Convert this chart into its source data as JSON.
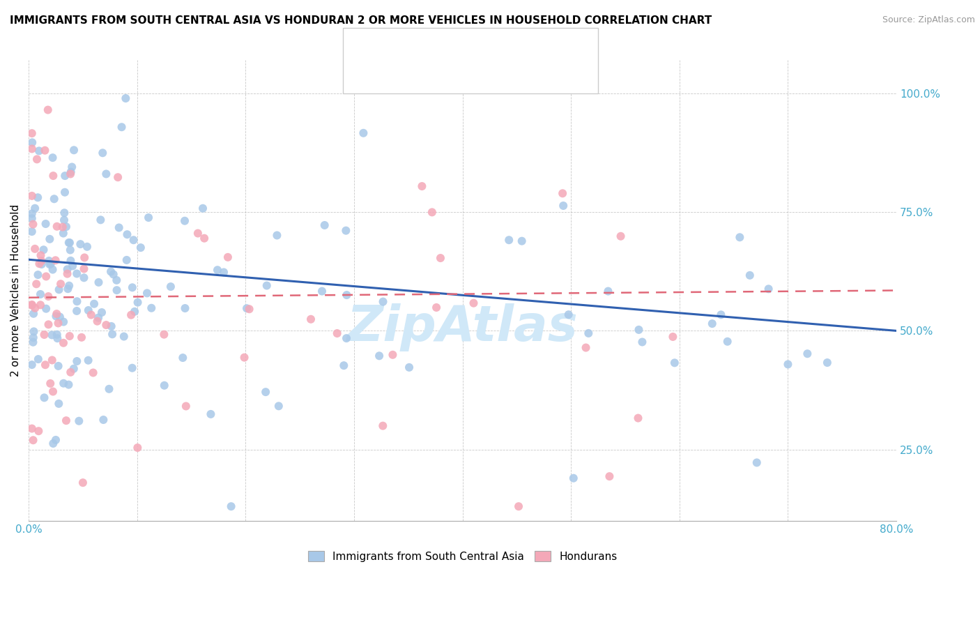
{
  "title": "IMMIGRANTS FROM SOUTH CENTRAL ASIA VS HONDURAN 2 OR MORE VEHICLES IN HOUSEHOLD CORRELATION CHART",
  "source": "Source: ZipAtlas.com",
  "xmin": 0.0,
  "xmax": 80.0,
  "ymin": 10.0,
  "ymax": 107.0,
  "yticks": [
    25.0,
    50.0,
    75.0,
    100.0
  ],
  "xticks": [
    0.0,
    10.0,
    20.0,
    30.0,
    40.0,
    50.0,
    60.0,
    70.0,
    80.0
  ],
  "series1_color": "#a8c8e8",
  "series2_color": "#f4a8b8",
  "trendline1_color": "#3060b0",
  "trendline2_color": "#e06878",
  "watermark_color": "#d0e8f8",
  "title_fontsize": 11,
  "source_fontsize": 9,
  "tick_color": "#44aacc",
  "ylabel_color": "#000000",
  "trendline1_start_y": 65.0,
  "trendline1_end_y": 50.0,
  "trendline2_start_y": 57.0,
  "trendline2_end_y": 58.5
}
